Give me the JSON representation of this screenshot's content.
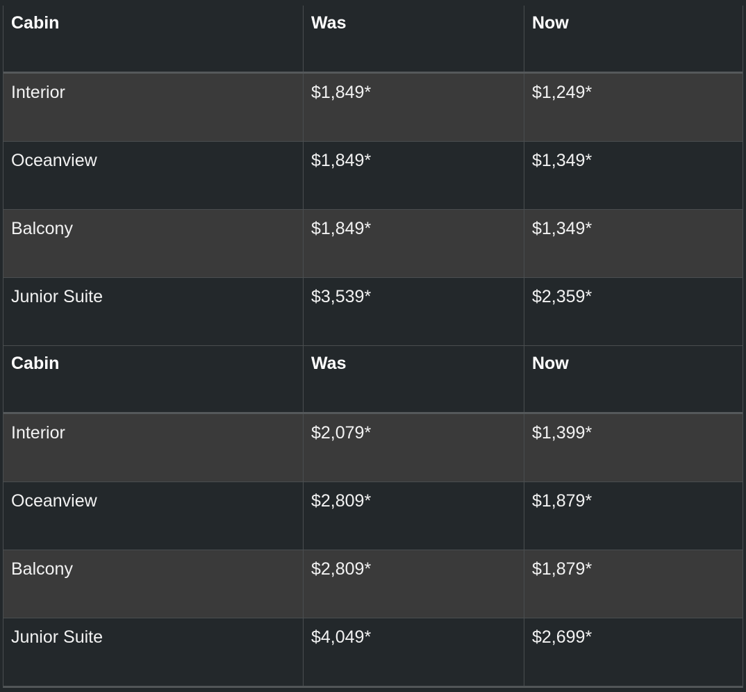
{
  "tables": [
    {
      "headers": [
        "Cabin",
        "Was",
        "Now"
      ],
      "rows": [
        [
          "Interior",
          "$1,849*",
          "$1,249*"
        ],
        [
          "Oceanview",
          "$1,849*",
          "$1,349*"
        ],
        [
          "Balcony",
          "$1,849*",
          "$1,349*"
        ],
        [
          "Junior Suite",
          "$3,539*",
          "$2,359*"
        ]
      ]
    },
    {
      "headers": [
        "Cabin",
        "Was",
        "Now"
      ],
      "rows": [
        [
          "Interior",
          "$2,079*",
          "$1,399*"
        ],
        [
          "Oceanview",
          "$2,809*",
          "$1,879*"
        ],
        [
          "Balcony",
          "$2,809*",
          "$1,879*"
        ],
        [
          "Junior Suite",
          "$4,049*",
          "$2,699*"
        ]
      ]
    }
  ]
}
